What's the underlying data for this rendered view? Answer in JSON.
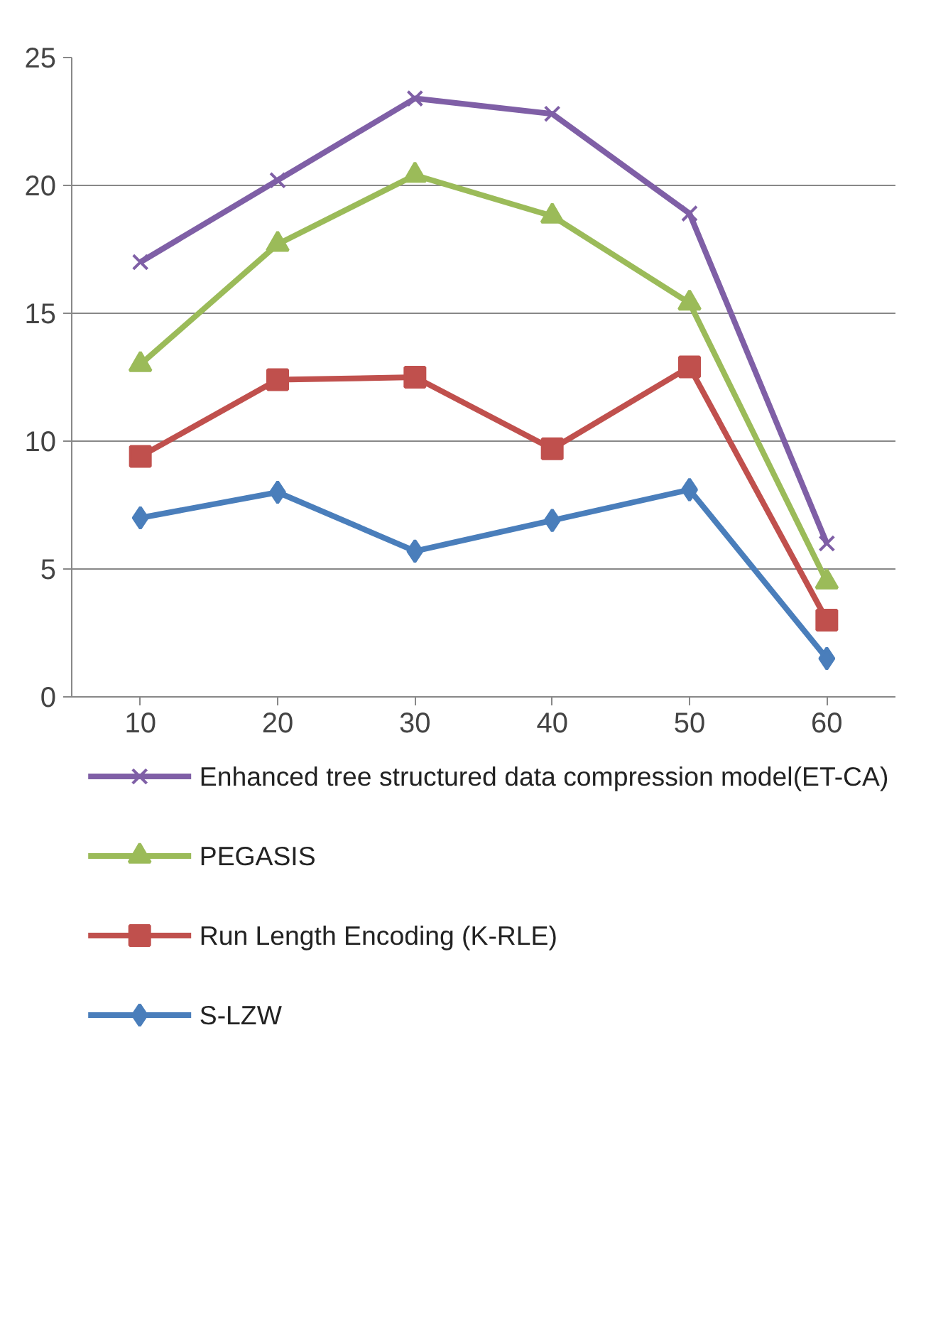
{
  "chart_data": {
    "type": "line",
    "categories": [
      "10",
      "20",
      "30",
      "40",
      "50",
      "60"
    ],
    "series": [
      {
        "name": "Enhanced tree structured data compression model(ET-CA)",
        "color": "#7f5fa6",
        "marker": "cross",
        "values": [
          17.0,
          20.2,
          23.4,
          22.8,
          18.9,
          6.0
        ]
      },
      {
        "name": "PEGASIS",
        "color": "#9bbb59",
        "marker": "triangle",
        "values": [
          13.0,
          17.7,
          20.4,
          18.8,
          15.4,
          4.5
        ]
      },
      {
        "name": "Run Length Encoding (K-RLE)",
        "color": "#c0504d",
        "marker": "square",
        "values": [
          9.4,
          12.4,
          12.5,
          9.7,
          12.9,
          3.0
        ]
      },
      {
        "name": "S-LZW",
        "color": "#4a7ebb",
        "marker": "diamond",
        "values": [
          7.0,
          8.0,
          5.7,
          6.9,
          8.1,
          1.5
        ]
      }
    ],
    "ylim": [
      0,
      25
    ],
    "yticks": [
      0,
      5,
      10,
      15,
      20,
      25
    ],
    "grid": "y",
    "legend": "bottom"
  }
}
